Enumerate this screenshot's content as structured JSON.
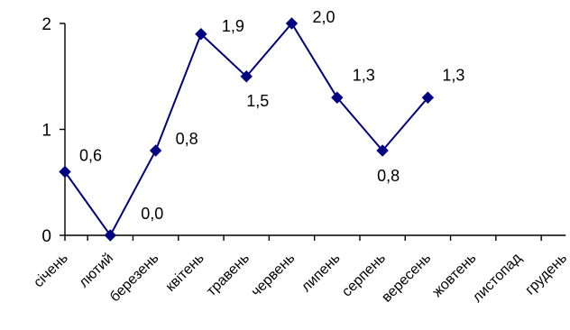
{
  "chart_data": {
    "type": "line",
    "title": "",
    "xlabel": "",
    "ylabel": "",
    "categories": [
      "січень",
      "лютий",
      "березень",
      "квітень",
      "травень",
      "червень",
      "липень",
      "серпень",
      "вересень",
      "жовтень",
      "листопад",
      "грудень"
    ],
    "series": [
      {
        "values": [
          0.6,
          0.0,
          0.8,
          1.9,
          1.5,
          2.0,
          1.3,
          0.8,
          1.3,
          null,
          null,
          null
        ],
        "labels": [
          "0,6",
          "0,0",
          "0,8",
          "1,9",
          "1,5",
          "2,0",
          "1,3",
          "0,8",
          "1,3",
          null,
          null,
          null
        ],
        "color": "#000080",
        "marker": "diamond"
      }
    ],
    "y_ticks": [
      0,
      1,
      2
    ],
    "y_tick_labels": [
      "0",
      "1",
      "2"
    ],
    "ylim": [
      0,
      2
    ],
    "grid": false,
    "legend": "none"
  }
}
